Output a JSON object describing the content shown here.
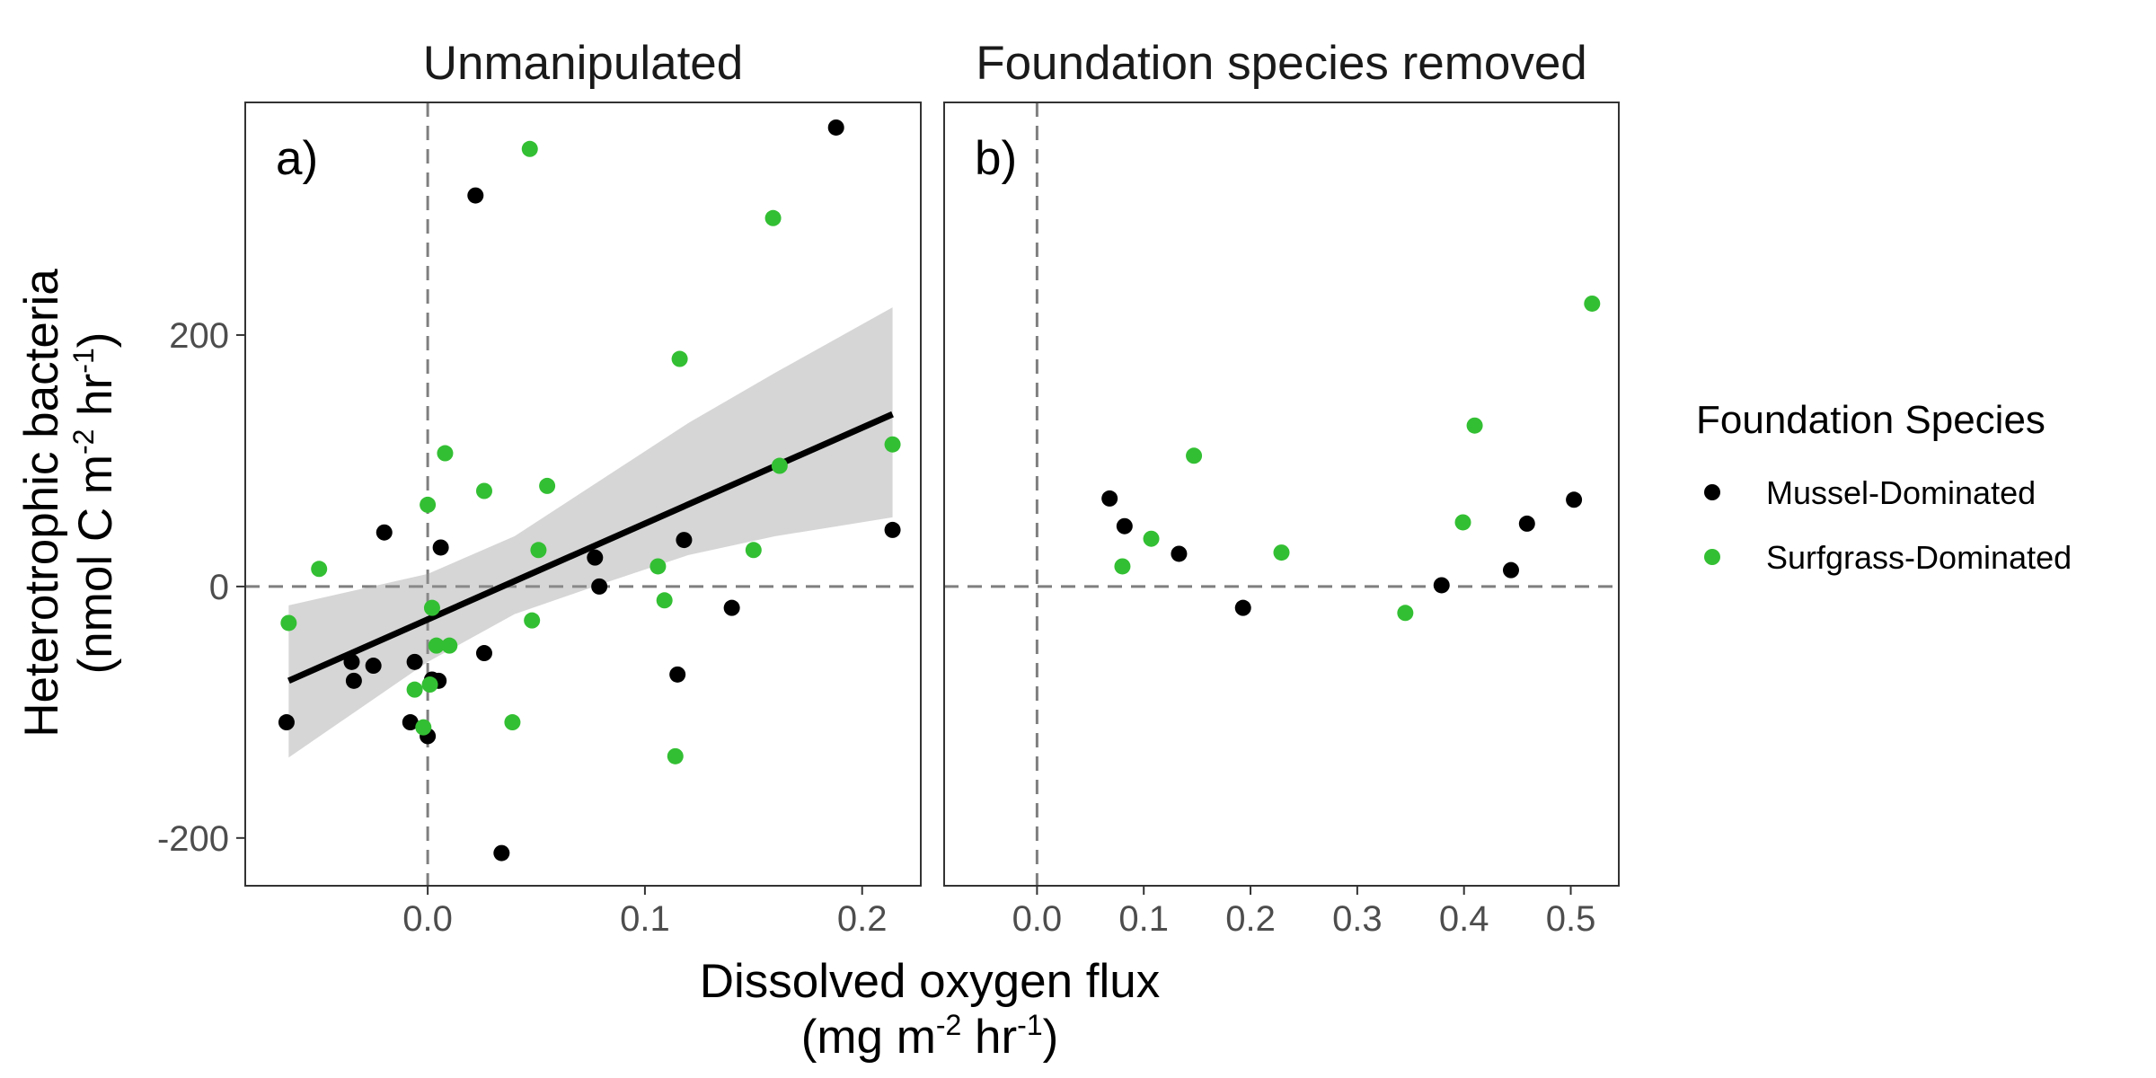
{
  "chart_data": {
    "type": "scatter",
    "y_label": "Heterotrophic bacteria",
    "y_unit_prefix": "(nmol C m",
    "y_unit_exp1": "-2",
    "y_unit_mid": " hr",
    "y_unit_exp2": "-1",
    "y_unit_suffix": ")",
    "x_label": "Dissolved oxygen flux",
    "x_unit_prefix": "(mg m",
    "x_unit_exp1": "-2",
    "x_unit_mid": " hr",
    "x_unit_exp2": "-1",
    "x_unit_suffix": ")",
    "ylim": [
      -238,
      385
    ],
    "y_ticks": [
      {
        "v": -200,
        "label": "-200"
      },
      {
        "v": 0,
        "label": "0"
      },
      {
        "v": 200,
        "label": "200"
      }
    ],
    "reference_lines": {
      "x": 0,
      "y": 0,
      "style": "dashed"
    },
    "legend": {
      "title": "Foundation Species",
      "position": "right",
      "entries": [
        {
          "label": "Mussel-Dominated",
          "color": "#000000"
        },
        {
          "label": "Surfgrass-Dominated",
          "color": "#33bf33"
        }
      ]
    },
    "panels": [
      {
        "id": "a",
        "strip": "Unmanipulated",
        "tag": "a)",
        "xlim": [
          -0.084,
          0.227
        ],
        "x_ticks": [
          {
            "v": 0,
            "label": "0.0"
          },
          {
            "v": 0.1,
            "label": "0.1"
          },
          {
            "v": 0.2,
            "label": "0.2"
          }
        ],
        "series": [
          {
            "name": "Mussel-Dominated",
            "color": "#000000",
            "points": [
              [
                -0.065,
                -108
              ],
              [
                -0.035,
                -60
              ],
              [
                -0.034,
                -75
              ],
              [
                -0.025,
                -63
              ],
              [
                -0.02,
                43
              ],
              [
                -0.008,
                -108
              ],
              [
                -0.006,
                -60
              ],
              [
                0.0,
                -119
              ],
              [
                0.002,
                -74
              ],
              [
                0.005,
                -75
              ],
              [
                0.006,
                31
              ],
              [
                0.022,
                311
              ],
              [
                0.026,
                -53
              ],
              [
                0.034,
                -212
              ],
              [
                0.077,
                23
              ],
              [
                0.079,
                0
              ],
              [
                0.115,
                -70
              ],
              [
                0.118,
                37
              ],
              [
                0.14,
                -17
              ],
              [
                0.188,
                365
              ],
              [
                0.214,
                45
              ]
            ]
          },
          {
            "name": "Surfgrass-Dominated",
            "color": "#33bf33",
            "points": [
              [
                -0.064,
                -29
              ],
              [
                -0.05,
                14
              ],
              [
                -0.006,
                -82
              ],
              [
                -0.002,
                -112
              ],
              [
                0.0,
                65
              ],
              [
                0.001,
                -78
              ],
              [
                0.002,
                -17
              ],
              [
                0.004,
                -47
              ],
              [
                0.008,
                106
              ],
              [
                0.01,
                -47
              ],
              [
                0.026,
                76
              ],
              [
                0.039,
                -108
              ],
              [
                0.047,
                348
              ],
              [
                0.048,
                -27
              ],
              [
                0.051,
                29
              ],
              [
                0.055,
                80
              ],
              [
                0.106,
                16
              ],
              [
                0.109,
                -11
              ],
              [
                0.114,
                -135
              ],
              [
                0.116,
                181
              ],
              [
                0.15,
                29
              ],
              [
                0.159,
                293
              ],
              [
                0.162,
                96
              ],
              [
                0.214,
                113
              ]
            ]
          }
        ],
        "fit_line": {
          "x": [
            -0.064,
            0.214
          ],
          "y": [
            -75,
            137
          ]
        },
        "confidence_band": {
          "x": [
            -0.064,
            0.0,
            0.04,
            0.08,
            0.12,
            0.16,
            0.214
          ],
          "lower": [
            -136,
            -60,
            -22,
            2,
            25,
            40,
            55
          ],
          "upper": [
            -15,
            10,
            40,
            85,
            130,
            170,
            222
          ]
        }
      },
      {
        "id": "b",
        "strip": "Foundation species removed",
        "tag": "b)",
        "xlim": [
          -0.087,
          0.545
        ],
        "x_ticks": [
          {
            "v": 0,
            "label": "0.0"
          },
          {
            "v": 0.1,
            "label": "0.1"
          },
          {
            "v": 0.2,
            "label": "0.2"
          },
          {
            "v": 0.3,
            "label": "0.3"
          },
          {
            "v": 0.4,
            "label": "0.4"
          },
          {
            "v": 0.5,
            "label": "0.5"
          }
        ],
        "series": [
          {
            "name": "Mussel-Dominated",
            "color": "#000000",
            "points": [
              [
                0.068,
                70
              ],
              [
                0.082,
                48
              ],
              [
                0.133,
                26
              ],
              [
                0.193,
                -17
              ],
              [
                0.379,
                1
              ],
              [
                0.444,
                13
              ],
              [
                0.459,
                50
              ],
              [
                0.503,
                69
              ]
            ]
          },
          {
            "name": "Surfgrass-Dominated",
            "color": "#33bf33",
            "points": [
              [
                0.08,
                16
              ],
              [
                0.107,
                38
              ],
              [
                0.147,
                104
              ],
              [
                0.229,
                27
              ],
              [
                0.345,
                -21
              ],
              [
                0.399,
                51
              ],
              [
                0.41,
                128
              ],
              [
                0.52,
                225
              ]
            ]
          }
        ]
      }
    ]
  }
}
